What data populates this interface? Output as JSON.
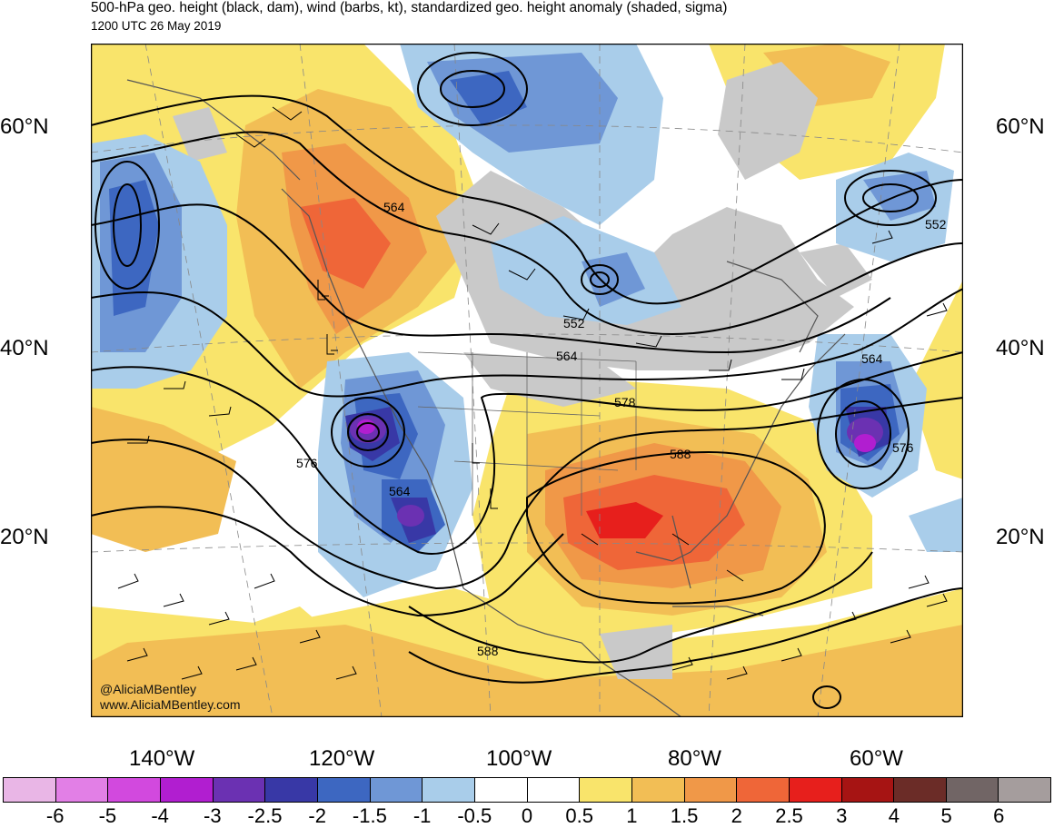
{
  "header": {
    "title": "500-hPa geo. height (black, dam), wind (barbs, kt), standardized geo. height anomaly (shaded, sigma)",
    "valid_time": "1200 UTC 26 May 2019"
  },
  "map": {
    "lat_labels": [
      "60°N",
      "40°N",
      "20°N"
    ],
    "lon_labels": [
      "140°W",
      "120°W",
      "100°W",
      "80°W",
      "60°W"
    ],
    "contour_labels": [
      "564",
      "552",
      "564",
      "578",
      "576",
      "564",
      "588",
      "588",
      "552",
      "564",
      "576"
    ],
    "colors": {
      "land_gray": "#c9c9c9",
      "contour": "#000000",
      "coast": "#555555"
    },
    "credits": [
      "@AliciaMBentley",
      "www.AliciaMBentley.com"
    ]
  },
  "colorbar": {
    "labels": [
      "-6",
      "-5",
      "-4",
      "-3",
      "-2.5",
      "-2",
      "-1.5",
      "-1",
      "-0.5",
      "0",
      "0.5",
      "1",
      "1.5",
      "2",
      "2.5",
      "3",
      "4",
      "5",
      "6"
    ],
    "colors": [
      "#e9b6e6",
      "#e27fe6",
      "#d249de",
      "#b11ed0",
      "#6b31b2",
      "#3838a6",
      "#3d67c1",
      "#6f97d6",
      "#a9cdea",
      "#ffffff",
      "#ffffff",
      "#f9e46b",
      "#f2be55",
      "#f09848",
      "#ef6638",
      "#e71f1c",
      "#a61413",
      "#6b2c27",
      "#716565",
      "#a59d9d"
    ]
  }
}
